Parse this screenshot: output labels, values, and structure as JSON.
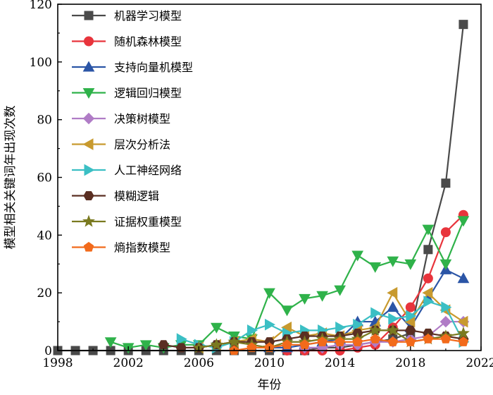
{
  "chart_data": {
    "type": "line",
    "title": "",
    "xlabel": "年份",
    "ylabel": "模型相关关键词年出现次数",
    "xlim": [
      1998,
      2022
    ],
    "ylim": [
      0,
      120
    ],
    "xticks": [
      1998,
      2002,
      2006,
      2010,
      2014,
      2018,
      2022
    ],
    "yticks": [
      0,
      20,
      40,
      60,
      80,
      100,
      120
    ],
    "grid": false,
    "legend_position": "top-left",
    "series": [
      {
        "name": "机器学习模型",
        "color": "#4a4a4a",
        "marker": "square",
        "x": [
          1998,
          1999,
          2000,
          2001,
          2002,
          2003,
          2004,
          2005,
          2006,
          2007,
          2008,
          2009,
          2010,
          2011,
          2012,
          2013,
          2014,
          2015,
          2016,
          2017,
          2018,
          2019,
          2020,
          2021
        ],
        "y": [
          0,
          0,
          0,
          0,
          0,
          0,
          0,
          0,
          0,
          0,
          0,
          0,
          0,
          0,
          0,
          1,
          1,
          2,
          3,
          4,
          6,
          35,
          58,
          113
        ]
      },
      {
        "name": "随机森林模型",
        "color": "#e8343c",
        "marker": "circle",
        "x": [
          2011,
          2012,
          2013,
          2014,
          2015,
          2016,
          2017,
          2018,
          2019,
          2020,
          2021
        ],
        "y": [
          0,
          0,
          0,
          0,
          1,
          2,
          8,
          15,
          25,
          41,
          47
        ]
      },
      {
        "name": "支持向量机模型",
        "color": "#2b55a6",
        "marker": "triangle-up",
        "x": [
          2010,
          2011,
          2012,
          2013,
          2014,
          2015,
          2016,
          2017,
          2018,
          2019,
          2020,
          2021
        ],
        "y": [
          1,
          1,
          2,
          3,
          4,
          10,
          10,
          15,
          8,
          18,
          28,
          25
        ]
      },
      {
        "name": "逻辑回归模型",
        "color": "#2fb24a",
        "marker": "triangle-down",
        "x": [
          2001,
          2002,
          2003,
          2004,
          2005,
          2006,
          2007,
          2008,
          2009,
          2010,
          2011,
          2012,
          2013,
          2014,
          2015,
          2016,
          2017,
          2018,
          2019,
          2020,
          2021
        ],
        "y": [
          3,
          1,
          2,
          1,
          2,
          2,
          8,
          5,
          4,
          20,
          14,
          18,
          19,
          21,
          33,
          29,
          31,
          30,
          42,
          30,
          45
        ]
      },
      {
        "name": "决策树模型",
        "color": "#b07cc6",
        "marker": "diamond",
        "x": [
          2012,
          2013,
          2014,
          2015,
          2016,
          2017,
          2018,
          2019,
          2020,
          2021
        ],
        "y": [
          1,
          1,
          2,
          2,
          3,
          3,
          4,
          5,
          10,
          10
        ]
      },
      {
        "name": "层次分析法",
        "color": "#c89a2e",
        "marker": "triangle-left",
        "x": [
          2006,
          2007,
          2008,
          2009,
          2010,
          2011,
          2012,
          2013,
          2014,
          2015,
          2016,
          2017,
          2018,
          2019,
          2020,
          2021
        ],
        "y": [
          1,
          2,
          3,
          4,
          3,
          8,
          5,
          6,
          5,
          7,
          8,
          20,
          10,
          20,
          14,
          10
        ]
      },
      {
        "name": "人工神经网络",
        "color": "#3bbfc4",
        "marker": "triangle-right",
        "x": [
          2005,
          2006,
          2007,
          2008,
          2009,
          2010,
          2011,
          2012,
          2013,
          2014,
          2015,
          2016,
          2017,
          2018,
          2019,
          2020,
          2021
        ],
        "y": [
          4,
          2,
          1,
          3,
          7,
          9,
          6,
          7,
          7,
          8,
          9,
          13,
          11,
          12,
          17,
          15,
          3
        ]
      },
      {
        "name": "模糊逻辑",
        "color": "#5a2e22",
        "marker": "hexagon",
        "x": [
          2004,
          2005,
          2006,
          2007,
          2008,
          2009,
          2010,
          2011,
          2012,
          2013,
          2014,
          2015,
          2016,
          2017,
          2018,
          2019,
          2020,
          2021
        ],
        "y": [
          2,
          1,
          1,
          2,
          3,
          3,
          3,
          4,
          5,
          5,
          5,
          6,
          7,
          7,
          7,
          6,
          5,
          4
        ]
      },
      {
        "name": "证据权重模型",
        "color": "#7a7a20",
        "marker": "star",
        "x": [
          2006,
          2007,
          2008,
          2009,
          2010,
          2011,
          2012,
          2013,
          2014,
          2015,
          2016,
          2017,
          2018,
          2019,
          2020,
          2021
        ],
        "y": [
          1,
          2,
          3,
          2,
          1,
          3,
          3,
          4,
          4,
          4,
          7,
          7,
          3,
          4,
          5,
          6
        ]
      },
      {
        "name": "熵指数模型",
        "color": "#f26a1b",
        "marker": "pentagon",
        "x": [
          2008,
          2009,
          2010,
          2011,
          2012,
          2013,
          2014,
          2015,
          2016,
          2017,
          2018,
          2019,
          2020,
          2021
        ],
        "y": [
          0,
          1,
          1,
          2,
          2,
          3,
          3,
          3,
          4,
          3,
          3,
          4,
          4,
          3
        ]
      }
    ]
  }
}
